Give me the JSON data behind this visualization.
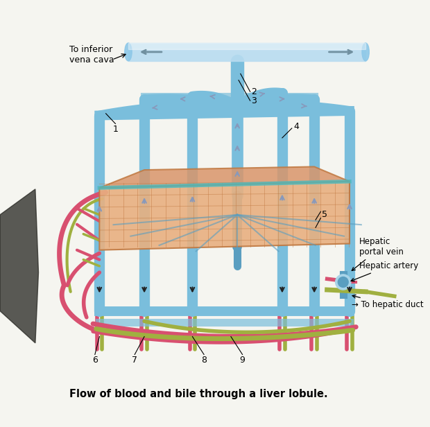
{
  "title": "Flow of blood and bile through a liver lobule.",
  "title_fontsize": 10.5,
  "title_fontweight": "bold",
  "bg_color": "#ffffff",
  "fig_width": 6.2,
  "fig_height": 6.16,
  "dpi": 100,
  "colors": {
    "blue_vessel": "#7ABEDC",
    "blue_vessel_dark": "#5A9EC0",
    "blue_vessel_light": "#A8D4E8",
    "pink_artery": "#D85070",
    "olive_duct": "#8B9B3A",
    "olive_duct2": "#A0B040",
    "peach_tissue": "#D9956A",
    "peach_tissue_light": "#E8B080",
    "vena_cava_blue": "#8EC8E8",
    "vena_cava_light": "#B8DCF0",
    "shadow_dark": "#2A2A2A",
    "bg": "#F5F5F0"
  },
  "labels": {
    "vena_cava": "To inferior\nvena cava",
    "hepatic_portal": "Hepatic\nportal vein",
    "hepatic_artery": "Hepatic artery",
    "hepatic_duct": "→ To hepatic duct",
    "caption": "Flow of blood and bile through a liver lobule."
  }
}
